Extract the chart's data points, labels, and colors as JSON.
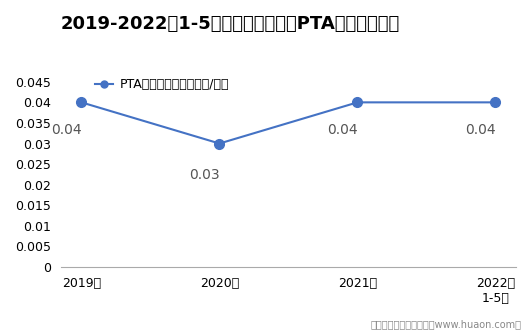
{
  "title": "2019-2022年1-5月郑州商品交易所PTA期权成交均价",
  "legend_label": "PTA期权成交均价（万元/手）",
  "x_labels": [
    "2019年",
    "2020年",
    "2021年",
    "2022年\n1-5月"
  ],
  "x_positions": [
    0,
    1,
    2,
    3
  ],
  "y_values": [
    0.04,
    0.03,
    0.04,
    0.04
  ],
  "data_labels": [
    "0.04",
    "0.03",
    "0.04",
    "0.04"
  ],
  "ylim": [
    0,
    0.045
  ],
  "yticks": [
    0,
    0.005,
    0.01,
    0.015,
    0.02,
    0.025,
    0.03,
    0.035,
    0.04,
    0.045
  ],
  "line_color": "#4472C4",
  "marker_style": "o",
  "marker_size": 7,
  "line_width": 1.5,
  "title_fontsize": 13,
  "tick_fontsize": 9,
  "legend_fontsize": 9,
  "annotation_fontsize": 10,
  "background_color": "#FFFFFF",
  "footer_text": "制图：华经产业研究院（www.huaon.com）",
  "footer_fontsize": 7,
  "footer_color": "#888888"
}
